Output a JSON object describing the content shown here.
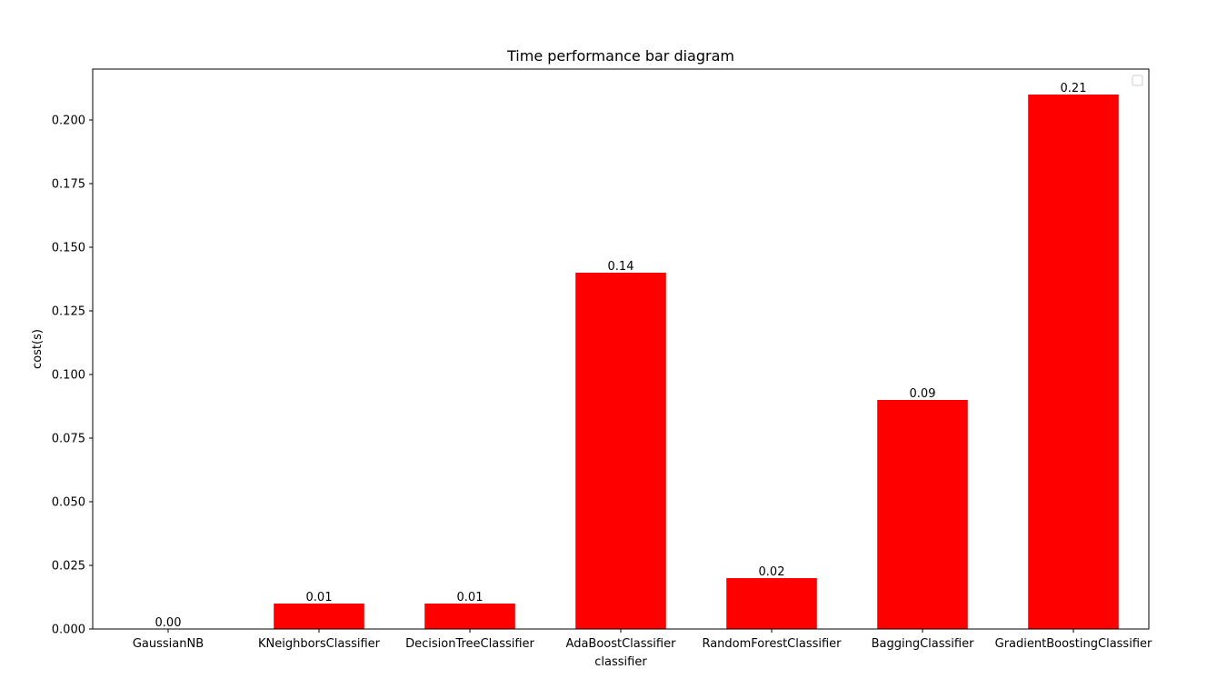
{
  "chart_data": {
    "type": "bar",
    "title": "Time performance bar diagram",
    "xlabel": "classifier",
    "ylabel": "cost(s)",
    "categories": [
      "GaussianNB",
      "KNeighborsClassifier",
      "DecisionTreeClassifier",
      "AdaBoostClassifier",
      "RandomForestClassifier",
      "BaggingClassifier",
      "GradientBoostingClassifier"
    ],
    "values": [
      0.0,
      0.01,
      0.01,
      0.14,
      0.02,
      0.09,
      0.21
    ],
    "value_labels": [
      "0.00",
      "0.01",
      "0.01",
      "0.14",
      "0.02",
      "0.09",
      "0.21"
    ],
    "ylim": [
      0,
      0.22
    ],
    "yticks": [
      0.0,
      0.025,
      0.05,
      0.075,
      0.1,
      0.125,
      0.15,
      0.175,
      0.2
    ],
    "ytick_labels": [
      "0.000",
      "0.025",
      "0.050",
      "0.075",
      "0.100",
      "0.125",
      "0.150",
      "0.175",
      "0.200"
    ],
    "grid": false,
    "legend": {
      "placement": "top-right",
      "entries": []
    },
    "colors": {
      "bar": "#ff0000",
      "axes": "#000000",
      "background": "#ffffff"
    }
  }
}
